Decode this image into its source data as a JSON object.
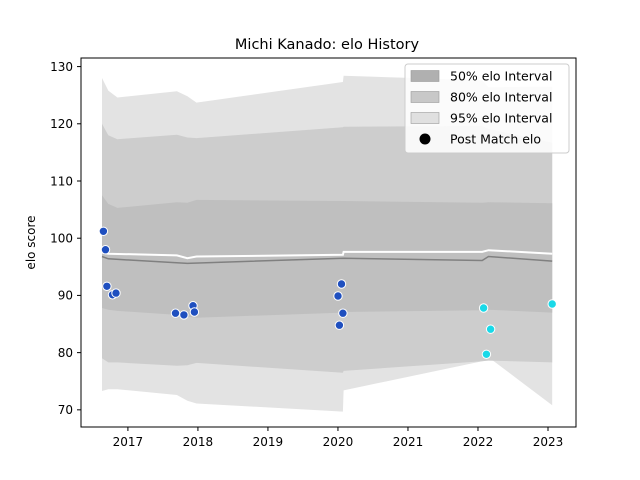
{
  "chart_data": {
    "type": "line",
    "title": "Michi Kanado: elo History",
    "xlabel": "",
    "ylabel": "elo score",
    "xlim": [
      2016.33,
      2023.4
    ],
    "ylim": [
      67,
      131.5
    ],
    "xticks": [
      2017,
      2018,
      2019,
      2020,
      2021,
      2022,
      2023
    ],
    "yticks": [
      70,
      80,
      90,
      100,
      110,
      120,
      130
    ],
    "legend_position": "top-right",
    "legend": [
      {
        "label": "50% elo Interval",
        "kind": "patch",
        "color": "#b0b0b0"
      },
      {
        "label": "80% elo Interval",
        "kind": "patch",
        "color": "#c8c8c8"
      },
      {
        "label": "95% elo Interval",
        "kind": "patch",
        "color": "#e0e0e0"
      },
      {
        "label": "Post Match elo",
        "kind": "marker",
        "color": "#000000"
      }
    ],
    "band_x": [
      2016.63,
      2016.72,
      2016.85,
      2017.7,
      2017.85,
      2017.98,
      2020.07,
      2020.08,
      2022.06,
      2022.15,
      2023.06
    ],
    "band_95": {
      "lower": [
        73.3,
        73.6,
        73.6,
        72.6,
        71.6,
        71.1,
        69.7,
        73.4,
        78.5,
        79.2,
        70.8
      ],
      "upper": [
        128.0,
        125.8,
        124.6,
        125.7,
        124.8,
        123.7,
        127.3,
        128.4,
        127.6,
        126.4,
        126.5
      ]
    },
    "band_80": {
      "lower": [
        79.0,
        78.3,
        78.3,
        77.7,
        77.8,
        78.2,
        76.5,
        76.8,
        78.5,
        78.6,
        78.3
      ],
      "upper": [
        120.0,
        118.0,
        117.3,
        118.1,
        117.6,
        117.5,
        119.4,
        119.5,
        119.6,
        119.1,
        116.7
      ]
    },
    "band_50": {
      "lower": [
        87.8,
        87.5,
        87.3,
        86.6,
        86.3,
        86.1,
        87.0,
        87.1,
        87.4,
        87.5,
        87.0
      ],
      "upper": [
        107.5,
        106.0,
        105.3,
        106.3,
        106.2,
        106.7,
        106.5,
        106.5,
        106.2,
        106.3,
        106.1
      ]
    },
    "series": [
      {
        "label": "mean",
        "color": "#808080",
        "x": [
          2016.63,
          2016.72,
          2017.85,
          2020.08,
          2022.06,
          2022.15,
          2023.06
        ],
        "y": [
          96.8,
          96.4,
          95.6,
          96.5,
          96.1,
          96.8,
          96.0
        ]
      },
      {
        "label": "median",
        "color": "#ffffff",
        "x": [
          2016.63,
          2016.72,
          2017.7,
          2017.85,
          2017.98,
          2020.07,
          2020.08,
          2022.06,
          2022.15,
          2023.06
        ],
        "y": [
          97.5,
          97.3,
          97.0,
          96.5,
          96.8,
          97.1,
          97.6,
          97.6,
          97.9,
          97.3
        ]
      }
    ],
    "points": [
      {
        "x": 2016.65,
        "y": 101.2,
        "color": "#1f4fbf"
      },
      {
        "x": 2016.68,
        "y": 98.0,
        "color": "#1f4fbf"
      },
      {
        "x": 2016.7,
        "y": 91.6,
        "color": "#1f4fbf"
      },
      {
        "x": 2016.78,
        "y": 90.1,
        "color": "#1f4fbf"
      },
      {
        "x": 2016.83,
        "y": 90.4,
        "color": "#1f4fbf"
      },
      {
        "x": 2017.68,
        "y": 86.9,
        "color": "#1f4fbf"
      },
      {
        "x": 2017.8,
        "y": 86.6,
        "color": "#1f4fbf"
      },
      {
        "x": 2017.93,
        "y": 88.2,
        "color": "#1f4fbf"
      },
      {
        "x": 2017.95,
        "y": 87.1,
        "color": "#1f4fbf"
      },
      {
        "x": 2020.0,
        "y": 89.9,
        "color": "#1f4fbf"
      },
      {
        "x": 2020.05,
        "y": 92.0,
        "color": "#1f4fbf"
      },
      {
        "x": 2020.02,
        "y": 84.8,
        "color": "#1f4fbf"
      },
      {
        "x": 2020.07,
        "y": 86.9,
        "color": "#1f4fbf"
      },
      {
        "x": 2022.08,
        "y": 87.8,
        "color": "#19d9e8"
      },
      {
        "x": 2022.18,
        "y": 84.1,
        "color": "#19d9e8"
      },
      {
        "x": 2022.12,
        "y": 79.7,
        "color": "#19d9e8"
      },
      {
        "x": 2023.06,
        "y": 88.5,
        "color": "#19d9e8"
      }
    ],
    "colors": {
      "band_95": "#e3e3e3",
      "band_80": "#cdcdcd",
      "band_50": "#bfbfbf",
      "point_edge": "#ffffff"
    }
  }
}
